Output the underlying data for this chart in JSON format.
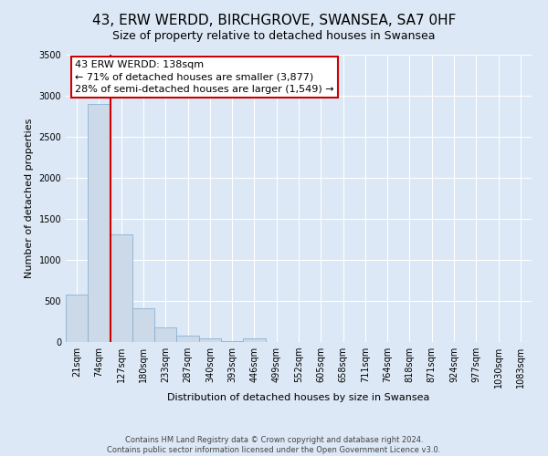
{
  "title": "43, ERW WERDD, BIRCHGROVE, SWANSEA, SA7 0HF",
  "subtitle": "Size of property relative to detached houses in Swansea",
  "xlabel": "Distribution of detached houses by size in Swansea",
  "ylabel": "Number of detached properties",
  "bar_labels": [
    "21sqm",
    "74sqm",
    "127sqm",
    "180sqm",
    "233sqm",
    "287sqm",
    "340sqm",
    "393sqm",
    "446sqm",
    "499sqm",
    "552sqm",
    "605sqm",
    "658sqm",
    "711sqm",
    "764sqm",
    "818sqm",
    "871sqm",
    "924sqm",
    "977sqm",
    "1030sqm",
    "1083sqm"
  ],
  "bar_values": [
    575,
    2900,
    1310,
    415,
    175,
    75,
    45,
    10,
    50,
    5,
    5,
    3,
    3,
    2,
    2,
    2,
    2,
    2,
    2,
    2,
    2
  ],
  "bar_color": "#ccd9e8",
  "bar_edge_color": "#7ea8cc",
  "vline_color": "#cc0000",
  "annotation_text": "43 ERW WERDD: 138sqm\n← 71% of detached houses are smaller (3,877)\n28% of semi-detached houses are larger (1,549) →",
  "annotation_box_color": "#ffffff",
  "annotation_box_edge": "#cc0000",
  "ylim": [
    0,
    3500
  ],
  "yticks": [
    0,
    500,
    1000,
    1500,
    2000,
    2500,
    3000,
    3500
  ],
  "footer_line1": "Contains HM Land Registry data © Crown copyright and database right 2024.",
  "footer_line2": "Contains public sector information licensed under the Open Government Licence v3.0.",
  "background_color": "#dce8f5",
  "plot_background": "#dce8f5",
  "title_fontsize": 11,
  "subtitle_fontsize": 9,
  "axis_label_fontsize": 8,
  "tick_fontsize": 7,
  "grid_color": "#ffffff"
}
